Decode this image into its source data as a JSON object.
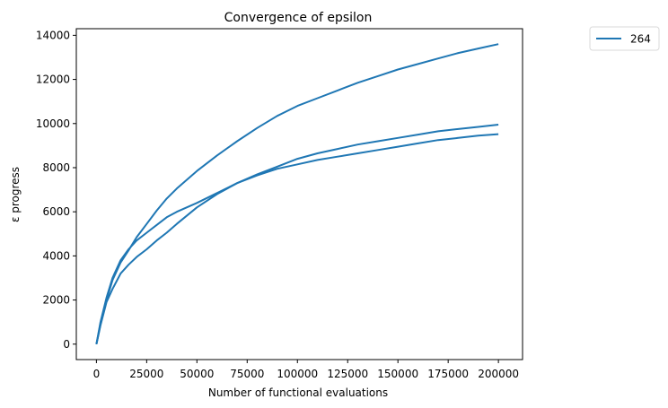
{
  "chart_data": {
    "type": "line",
    "title": "Convergence of epsilon",
    "xlabel": "Number of functional evaluations",
    "ylabel": "ε progress",
    "xlim": [
      -10000,
      212000
    ],
    "ylim": [
      -700,
      14300
    ],
    "xticks": [
      0,
      25000,
      50000,
      75000,
      100000,
      125000,
      150000,
      175000,
      200000
    ],
    "yticks": [
      0,
      2000,
      4000,
      6000,
      8000,
      10000,
      12000,
      14000
    ],
    "grid": false,
    "legend": {
      "placement": "outside-top-right",
      "entries": [
        "264"
      ]
    },
    "color": "#1f77b4",
    "series": [
      {
        "x": [
          0,
          2000,
          5000,
          8000,
          12000,
          16000,
          20000,
          25000,
          30000,
          35000,
          40000,
          50000,
          60000,
          70000,
          80000,
          90000,
          100000,
          110000,
          120000,
          130000,
          140000,
          150000,
          160000,
          170000,
          180000,
          190000,
          200000
        ],
        "y": [
          0,
          900,
          2000,
          2900,
          3700,
          4250,
          4850,
          5450,
          6050,
          6600,
          7050,
          7850,
          8550,
          9200,
          9800,
          10350,
          10800,
          11150,
          11500,
          11850,
          12150,
          12450,
          12700,
          12950,
          13200,
          13400,
          13600
        ]
      },
      {
        "x": [
          0,
          2000,
          5000,
          8000,
          12000,
          16000,
          20000,
          25000,
          30000,
          35000,
          40000,
          50000,
          60000,
          70000,
          80000,
          90000,
          100000,
          110000,
          120000,
          130000,
          140000,
          150000,
          160000,
          170000,
          180000,
          190000,
          200000
        ],
        "y": [
          0,
          1000,
          2100,
          3000,
          3800,
          4300,
          4700,
          5050,
          5400,
          5750,
          6000,
          6400,
          6850,
          7300,
          7700,
          8050,
          8400,
          8650,
          8850,
          9050,
          9200,
          9350,
          9500,
          9650,
          9750,
          9850,
          9950
        ]
      },
      {
        "x": [
          0,
          2000,
          5000,
          8000,
          12000,
          16000,
          20000,
          25000,
          30000,
          35000,
          40000,
          50000,
          60000,
          70000,
          80000,
          90000,
          100000,
          110000,
          120000,
          130000,
          140000,
          150000,
          160000,
          170000,
          180000,
          190000,
          200000
        ],
        "y": [
          0,
          850,
          1900,
          2500,
          3200,
          3600,
          3950,
          4300,
          4700,
          5050,
          5450,
          6200,
          6800,
          7300,
          7650,
          7950,
          8150,
          8350,
          8500,
          8650,
          8800,
          8950,
          9100,
          9250,
          9350,
          9450,
          9520
        ]
      }
    ]
  }
}
